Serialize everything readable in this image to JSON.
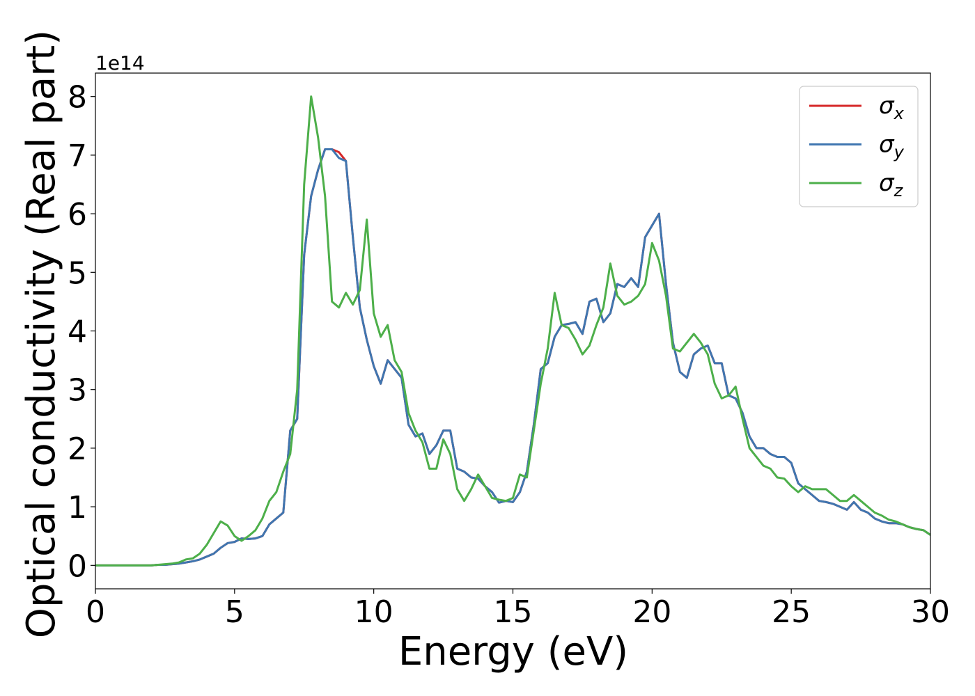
{
  "chart_data": {
    "type": "line",
    "xlabel": "Energy (eV)",
    "ylabel": "Optical conductivity (Real part)",
    "y_offset_label": "1e14",
    "x": [
      0,
      0.25,
      0.5,
      0.75,
      1,
      1.25,
      1.5,
      1.75,
      2,
      2.25,
      2.5,
      2.75,
      3,
      3.25,
      3.5,
      3.75,
      4,
      4.25,
      4.5,
      4.75,
      5,
      5.25,
      5.5,
      5.75,
      6,
      6.25,
      6.5,
      6.75,
      7,
      7.25,
      7.5,
      7.75,
      8,
      8.25,
      8.5,
      8.75,
      9,
      9.25,
      9.5,
      9.75,
      10,
      10.25,
      10.5,
      10.75,
      11,
      11.25,
      11.5,
      11.75,
      12,
      12.25,
      12.5,
      12.75,
      13,
      13.25,
      13.5,
      13.75,
      14,
      14.25,
      14.5,
      14.75,
      15,
      15.25,
      15.5,
      15.75,
      16,
      16.25,
      16.5,
      16.75,
      17,
      17.25,
      17.5,
      17.75,
      18,
      18.25,
      18.5,
      18.75,
      19,
      19.25,
      19.5,
      19.75,
      20,
      20.25,
      20.5,
      20.75,
      21,
      21.25,
      21.5,
      21.75,
      22,
      22.25,
      22.5,
      22.75,
      23,
      23.25,
      23.5,
      23.75,
      24,
      24.25,
      24.5,
      24.75,
      25,
      25.25,
      25.5,
      25.75,
      26,
      26.25,
      26.5,
      26.75,
      27,
      27.25,
      27.5,
      27.75,
      28,
      28.25,
      28.5,
      28.75,
      29,
      29.25,
      29.5,
      29.75,
      30
    ],
    "series": [
      {
        "name": "σx",
        "color": "#d62728",
        "values": [
          0,
          0,
          0,
          0,
          0,
          0,
          0,
          0,
          0,
          0.01,
          0.01,
          0.02,
          0.03,
          0.05,
          0.07,
          0.1,
          0.15,
          0.2,
          0.3,
          0.38,
          0.4,
          0.46,
          0.45,
          0.46,
          0.5,
          0.7,
          0.8,
          0.9,
          2.3,
          2.5,
          5.3,
          6.3,
          6.75,
          7.1,
          7.1,
          7.05,
          6.9,
          5.6,
          4.4,
          3.85,
          3.4,
          3.1,
          3.5,
          3.35,
          3.2,
          2.4,
          2.2,
          2.25,
          1.9,
          2.05,
          2.3,
          2.3,
          1.65,
          1.6,
          1.5,
          1.48,
          1.35,
          1.25,
          1.07,
          1.1,
          1.08,
          1.25,
          1.6,
          2.4,
          3.35,
          3.45,
          3.9,
          4.1,
          4.12,
          4.15,
          3.95,
          4.5,
          4.55,
          4.15,
          4.3,
          4.8,
          4.75,
          4.9,
          4.75,
          5.6,
          5.8,
          6.0,
          4.8,
          3.8,
          3.3,
          3.2,
          3.6,
          3.7,
          3.75,
          3.45,
          3.45,
          2.9,
          2.85,
          2.6,
          2.2,
          2.0,
          2.0,
          1.9,
          1.85,
          1.85,
          1.75,
          1.4,
          1.3,
          1.2,
          1.1,
          1.08,
          1.05,
          1.0,
          0.95,
          1.08,
          0.95,
          0.9,
          0.8,
          0.75,
          0.72,
          0.72,
          0.7,
          0.65,
          0.62,
          0.6,
          0.52
        ]
      },
      {
        "name": "σy",
        "color": "#3f76b0",
        "values": [
          0,
          0,
          0,
          0,
          0,
          0,
          0,
          0,
          0,
          0.01,
          0.01,
          0.02,
          0.03,
          0.05,
          0.07,
          0.1,
          0.15,
          0.2,
          0.3,
          0.38,
          0.4,
          0.46,
          0.45,
          0.46,
          0.5,
          0.7,
          0.8,
          0.9,
          2.3,
          2.5,
          5.3,
          6.3,
          6.75,
          7.1,
          7.1,
          6.95,
          6.9,
          5.6,
          4.4,
          3.85,
          3.4,
          3.1,
          3.5,
          3.35,
          3.2,
          2.4,
          2.2,
          2.25,
          1.9,
          2.05,
          2.3,
          2.3,
          1.65,
          1.6,
          1.5,
          1.48,
          1.35,
          1.25,
          1.07,
          1.1,
          1.08,
          1.25,
          1.6,
          2.4,
          3.35,
          3.45,
          3.9,
          4.1,
          4.12,
          4.15,
          3.95,
          4.5,
          4.55,
          4.15,
          4.3,
          4.8,
          4.75,
          4.9,
          4.75,
          5.6,
          5.8,
          6.0,
          4.8,
          3.8,
          3.3,
          3.2,
          3.6,
          3.7,
          3.75,
          3.45,
          3.45,
          2.9,
          2.85,
          2.6,
          2.2,
          2.0,
          2.0,
          1.9,
          1.85,
          1.85,
          1.75,
          1.4,
          1.3,
          1.2,
          1.1,
          1.08,
          1.05,
          1.0,
          0.95,
          1.08,
          0.95,
          0.9,
          0.8,
          0.75,
          0.72,
          0.72,
          0.7,
          0.65,
          0.62,
          0.6,
          0.52
        ]
      },
      {
        "name": "σz",
        "color": "#4daf4a",
        "values": [
          0,
          0,
          0,
          0,
          0,
          0,
          0,
          0,
          0,
          0.01,
          0.02,
          0.03,
          0.05,
          0.1,
          0.12,
          0.2,
          0.35,
          0.55,
          0.75,
          0.68,
          0.5,
          0.42,
          0.5,
          0.6,
          0.8,
          1.1,
          1.25,
          1.6,
          1.9,
          3.0,
          6.5,
          8.0,
          7.3,
          6.3,
          4.5,
          4.4,
          4.65,
          4.45,
          4.7,
          5.9,
          4.3,
          3.9,
          4.1,
          3.5,
          3.3,
          2.6,
          2.3,
          2.1,
          1.65,
          1.65,
          2.15,
          1.9,
          1.3,
          1.1,
          1.3,
          1.55,
          1.35,
          1.15,
          1.12,
          1.1,
          1.15,
          1.55,
          1.5,
          2.3,
          3.1,
          3.7,
          4.65,
          4.1,
          4.05,
          3.85,
          3.6,
          3.75,
          4.1,
          4.4,
          5.15,
          4.6,
          4.45,
          4.5,
          4.6,
          4.8,
          5.5,
          5.2,
          4.6,
          3.7,
          3.65,
          3.8,
          3.95,
          3.8,
          3.6,
          3.1,
          2.85,
          2.9,
          3.05,
          2.5,
          2.0,
          1.85,
          1.7,
          1.65,
          1.5,
          1.48,
          1.35,
          1.25,
          1.35,
          1.3,
          1.3,
          1.3,
          1.2,
          1.1,
          1.1,
          1.2,
          1.1,
          1.0,
          0.9,
          0.85,
          0.78,
          0.75,
          0.7,
          0.65,
          0.62,
          0.6,
          0.52
        ]
      }
    ],
    "xlim": [
      0,
      30
    ],
    "xticks": [
      0,
      5,
      10,
      15,
      20,
      25,
      30
    ],
    "ylim": [
      -0.4,
      8.4
    ],
    "yticks": [
      0,
      1,
      2,
      3,
      4,
      5,
      6,
      7,
      8
    ],
    "legend": "upper right",
    "grid": false
  }
}
